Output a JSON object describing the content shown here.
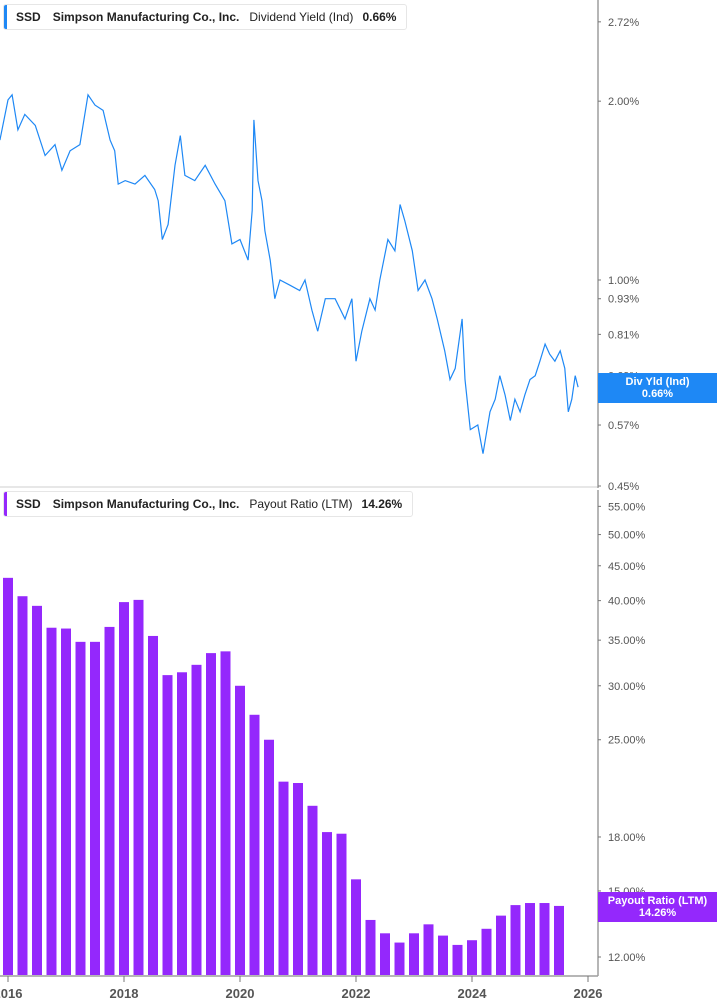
{
  "colors": {
    "yield": "#1e88f5",
    "payout": "#9428fc",
    "axis": "#9e9e9e",
    "label": "#555555"
  },
  "top_legend": {
    "ticker": "SSD",
    "company": "Simpson Manufacturing Co., Inc.",
    "metric": "Dividend Yield (Ind)",
    "value": "0.66%"
  },
  "top_tag": {
    "label": "Div Yld (Ind)",
    "value": "0.66%"
  },
  "bottom_legend": {
    "ticker": "SSD",
    "company": "Simpson Manufacturing Co., Inc.",
    "metric": "Payout Ratio (LTM)",
    "value": "14.26%"
  },
  "bottom_tag": {
    "label": "Payout Ratio (LTM)",
    "value": "14.26%"
  },
  "chart_data": [
    {
      "type": "line",
      "scale": "log",
      "yticks": [
        2.72,
        2.0,
        1.0,
        0.93,
        0.81,
        0.69,
        0.57,
        0.45
      ],
      "ytick_labels": [
        "2.72%",
        "2.00%",
        "1.00%",
        "0.93%",
        "0.81%",
        "0.69%",
        "0.57%",
        "0.45%"
      ],
      "ylim": [
        0.45,
        3.0
      ],
      "series": [
        {
          "name": "Dividend Yield (Ind)",
          "x": [
            2015.86,
            2016.0,
            2016.07,
            2016.17,
            2016.29,
            2016.47,
            2016.64,
            2016.81,
            2016.93,
            2017.07,
            2017.24,
            2017.38,
            2017.5,
            2017.64,
            2017.76,
            2017.84,
            2017.9,
            2018.02,
            2018.19,
            2018.36,
            2018.53,
            2018.59,
            2018.66,
            2018.76,
            2018.88,
            2018.97,
            2019.05,
            2019.22,
            2019.4,
            2019.57,
            2019.74,
            2019.86,
            2020.0,
            2020.14,
            2020.21,
            2020.24,
            2020.31,
            2020.38,
            2020.43,
            2020.52,
            2020.6,
            2020.69,
            2020.86,
            2021.03,
            2021.12,
            2021.24,
            2021.34,
            2021.47,
            2021.64,
            2021.81,
            2021.93,
            2022.0,
            2022.1,
            2022.24,
            2022.33,
            2022.41,
            2022.55,
            2022.67,
            2022.76,
            2022.84,
            2022.97,
            2023.07,
            2023.19,
            2023.31,
            2023.4,
            2023.53,
            2023.62,
            2023.71,
            2023.83,
            2023.88,
            2023.97,
            2024.1,
            2024.19,
            2024.31,
            2024.4,
            2024.48,
            2024.57,
            2024.66,
            2024.74,
            2024.83,
            2024.91,
            2025.0,
            2025.09,
            2025.17,
            2025.26,
            2025.34,
            2025.43,
            2025.52,
            2025.6,
            2025.66,
            2025.72,
            2025.78,
            2025.83
          ],
          "values": [
            1.72,
            2.01,
            2.05,
            1.79,
            1.9,
            1.82,
            1.62,
            1.69,
            1.53,
            1.65,
            1.69,
            2.05,
            1.97,
            1.93,
            1.72,
            1.65,
            1.45,
            1.47,
            1.45,
            1.5,
            1.42,
            1.36,
            1.17,
            1.24,
            1.56,
            1.75,
            1.5,
            1.47,
            1.56,
            1.45,
            1.36,
            1.15,
            1.17,
            1.08,
            1.31,
            1.86,
            1.47,
            1.36,
            1.21,
            1.08,
            0.93,
            1.0,
            0.98,
            0.96,
            1.0,
            0.89,
            0.82,
            0.93,
            0.93,
            0.86,
            0.93,
            0.73,
            0.82,
            0.93,
            0.89,
            1.0,
            1.17,
            1.12,
            1.34,
            1.26,
            1.12,
            0.96,
            1.0,
            0.93,
            0.86,
            0.76,
            0.68,
            0.71,
            0.86,
            0.68,
            0.56,
            0.57,
            0.51,
            0.6,
            0.63,
            0.69,
            0.64,
            0.58,
            0.63,
            0.6,
            0.64,
            0.68,
            0.69,
            0.73,
            0.78,
            0.75,
            0.73,
            0.76,
            0.71,
            0.6,
            0.63,
            0.69,
            0.66
          ]
        }
      ]
    },
    {
      "type": "bar",
      "scale": "log",
      "yticks": [
        55,
        50,
        45,
        40,
        35,
        30,
        25,
        18,
        15,
        12
      ],
      "ytick_labels": [
        "55.00%",
        "50.00%",
        "45.00%",
        "40.00%",
        "35.00%",
        "30.00%",
        "25.00%",
        "18.00%",
        "15.00%",
        "12.00%"
      ],
      "ylim": [
        11.5,
        57
      ],
      "xticks": [
        "2016",
        "2018",
        "2020",
        "2022",
        "2024",
        "2026"
      ],
      "series": [
        {
          "name": "Payout Ratio (LTM)",
          "x": [
            2016.0,
            2016.25,
            2016.5,
            2016.75,
            2017.0,
            2017.25,
            2017.5,
            2017.75,
            2018.0,
            2018.25,
            2018.5,
            2018.75,
            2019.0,
            2019.25,
            2019.5,
            2019.75,
            2020.0,
            2020.25,
            2020.5,
            2020.75,
            2021.0,
            2021.25,
            2021.5,
            2021.75,
            2022.0,
            2022.25,
            2022.5,
            2022.75,
            2023.0,
            2023.25,
            2023.5,
            2023.75,
            2024.0,
            2024.25,
            2024.5,
            2024.75,
            2025.0,
            2025.25,
            2025.5
          ],
          "values": [
            43.2,
            40.6,
            39.3,
            36.5,
            36.4,
            34.8,
            34.8,
            36.6,
            39.8,
            40.1,
            35.5,
            31.1,
            31.4,
            32.2,
            33.5,
            33.7,
            30.0,
            27.2,
            25.0,
            21.7,
            21.6,
            20.0,
            18.3,
            18.2,
            15.6,
            13.6,
            13.0,
            12.6,
            13.0,
            13.4,
            12.9,
            12.5,
            12.7,
            13.2,
            13.8,
            14.3,
            14.4,
            14.4,
            14.26
          ]
        }
      ]
    }
  ]
}
